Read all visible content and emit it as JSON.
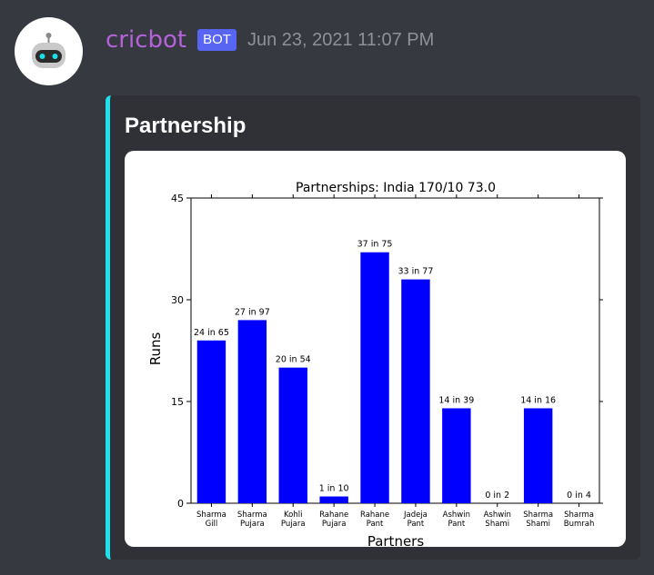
{
  "message": {
    "username": "cricbot",
    "badge": "BOT",
    "timestamp": "Jun 23, 2021 11:07 PM",
    "avatar_icon": "robot-icon"
  },
  "embed": {
    "title": "Partnership",
    "accent_color": "#1ee1ee"
  },
  "chart_data": {
    "type": "bar",
    "title": "Partnerships: India 170/10 73.0",
    "xlabel": "Partners",
    "ylabel": "Runs",
    "ylim": [
      0,
      45
    ],
    "yticks": [
      0,
      15,
      30,
      45
    ],
    "bar_color": "#0000ff",
    "categories": [
      [
        "Sharma",
        "Gill"
      ],
      [
        "Sharma",
        "Pujara"
      ],
      [
        "Kohli",
        "Pujara"
      ],
      [
        "Rahane",
        "Pujara"
      ],
      [
        "Rahane",
        "Pant"
      ],
      [
        "Jadeja",
        "Pant"
      ],
      [
        "Ashwin",
        "Pant"
      ],
      [
        "Ashwin",
        "Shami"
      ],
      [
        "Sharma",
        "Shami"
      ],
      [
        "Sharma",
        "Bumrah"
      ]
    ],
    "values": [
      24,
      27,
      20,
      1,
      37,
      33,
      14,
      0,
      14,
      0
    ],
    "data_labels": [
      "24 in 65",
      "27 in 97",
      "20 in 54",
      "1 in 10",
      "37 in 75",
      "33 in 77",
      "14 in 39",
      "0 in 2",
      "14 in 16",
      "0 in 4"
    ]
  }
}
